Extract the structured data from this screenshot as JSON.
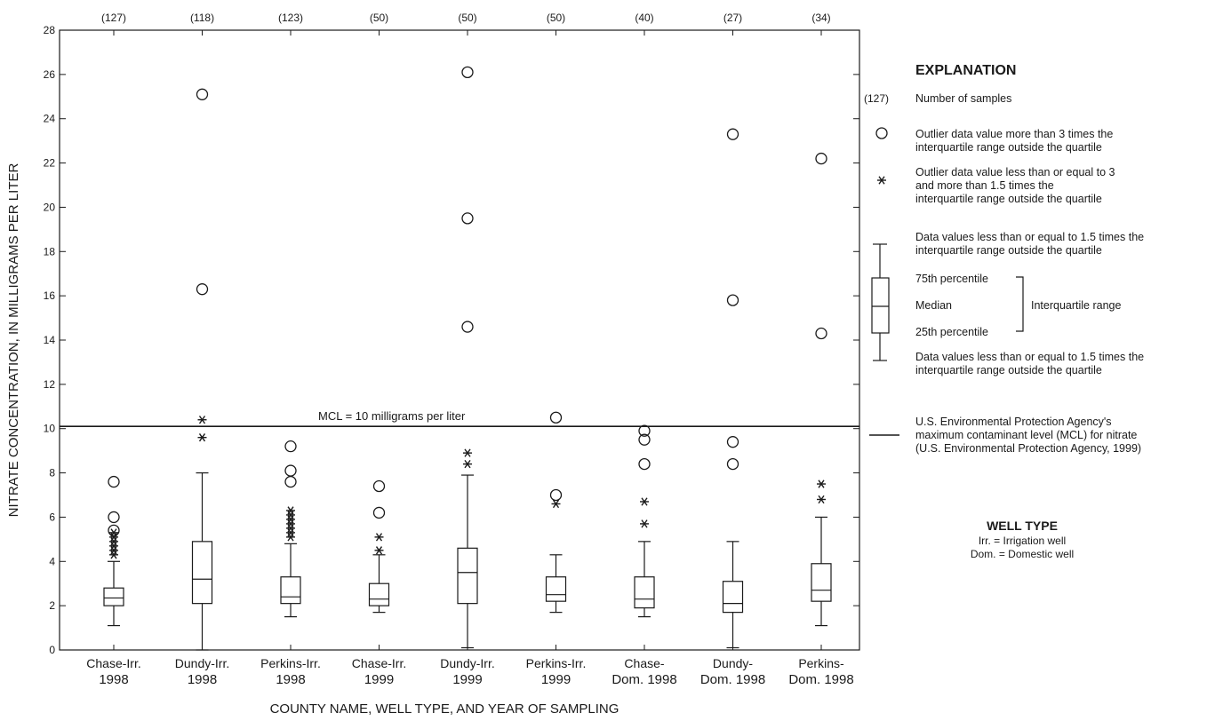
{
  "chart_data": {
    "type": "box",
    "xlabel": "COUNTY NAME, WELL TYPE, AND YEAR OF SAMPLING",
    "ylabel": "NITRATE CONCENTRATION, IN MILLIGRAMS PER LITER",
    "ylim": [
      0,
      28
    ],
    "yticks": [
      0,
      2,
      4,
      6,
      8,
      10,
      12,
      14,
      16,
      18,
      20,
      22,
      24,
      26,
      28
    ],
    "categories": [
      {
        "line1": "Chase-Irr.",
        "line2": "1998",
        "n": "(127)"
      },
      {
        "line1": "Dundy-Irr.",
        "line2": "1998",
        "n": "(118)"
      },
      {
        "line1": "Perkins-Irr.",
        "line2": "1998",
        "n": "(123)"
      },
      {
        "line1": "Chase-Irr.",
        "line2": "1999",
        "n": "(50)"
      },
      {
        "line1": "Dundy-Irr.",
        "line2": "1999",
        "n": "(50)"
      },
      {
        "line1": "Perkins-Irr.",
        "line2": "1999",
        "n": "(50)"
      },
      {
        "line1": "Chase-",
        "line2": "Dom. 1998",
        "n": "(40)"
      },
      {
        "line1": "Dundy-",
        "line2": "Dom. 1998",
        "n": "(27)"
      },
      {
        "line1": "Perkins-",
        "line2": "Dom. 1998",
        "n": "(34)"
      }
    ],
    "boxes": [
      {
        "whisker_low": 1.1,
        "q1": 2.0,
        "median": 2.35,
        "q3": 2.8,
        "whisker_high": 4.0,
        "star_outliers": [
          4.3,
          4.5,
          4.7,
          4.9,
          5.1,
          5.3
        ],
        "circle_outliers": [
          5.4,
          6.0,
          7.6
        ]
      },
      {
        "whisker_low": 0.0,
        "q1": 2.1,
        "median": 3.2,
        "q3": 4.9,
        "whisker_high": 8.0,
        "star_outliers": [
          9.6,
          10.4
        ],
        "circle_outliers": [
          16.3,
          25.1
        ]
      },
      {
        "whisker_low": 1.5,
        "q1": 2.1,
        "median": 2.4,
        "q3": 3.3,
        "whisker_high": 4.8,
        "star_outliers": [
          5.1,
          5.3,
          5.5,
          5.7,
          5.9,
          6.1,
          6.3
        ],
        "circle_outliers": [
          7.6,
          8.1,
          9.2
        ]
      },
      {
        "whisker_low": 1.7,
        "q1": 2.0,
        "median": 2.3,
        "q3": 3.0,
        "whisker_high": 4.3,
        "star_outliers": [
          4.5,
          5.1
        ],
        "circle_outliers": [
          6.2,
          7.4
        ]
      },
      {
        "whisker_low": 0.1,
        "q1": 2.1,
        "median": 3.5,
        "q3": 4.6,
        "whisker_high": 7.9,
        "star_outliers": [
          8.4,
          8.9
        ],
        "circle_outliers": [
          14.6,
          19.5,
          26.1
        ]
      },
      {
        "whisker_low": 1.7,
        "q1": 2.2,
        "median": 2.5,
        "q3": 3.3,
        "whisker_high": 4.3,
        "star_outliers": [
          6.6
        ],
        "circle_outliers": [
          7.0,
          10.5
        ]
      },
      {
        "whisker_low": 1.5,
        "q1": 1.9,
        "median": 2.3,
        "q3": 3.3,
        "whisker_high": 4.9,
        "star_outliers": [
          5.7,
          6.7
        ],
        "circle_outliers": [
          8.4,
          9.5,
          9.9
        ]
      },
      {
        "whisker_low": 0.1,
        "q1": 1.7,
        "median": 2.1,
        "q3": 3.1,
        "whisker_high": 4.9,
        "star_outliers": [],
        "circle_outliers": [
          8.4,
          9.4,
          15.8,
          23.3
        ]
      },
      {
        "whisker_low": 1.1,
        "q1": 2.2,
        "median": 2.7,
        "q3": 3.9,
        "whisker_high": 6.0,
        "star_outliers": [
          6.8,
          7.5
        ],
        "circle_outliers": [
          14.3,
          22.2
        ]
      }
    ],
    "reference_line": {
      "value": 10.1,
      "label": "MCL = 10 milligrams per liter"
    },
    "legend_position": "right"
  },
  "explanation": {
    "title": "EXPLANATION",
    "n_sample": "(127)",
    "n_text": "Number of samples",
    "circle_line1": "Outlier data value more than 3 times the",
    "circle_line2": "interquartile range outside the quartile",
    "star_line1": "Outlier data value less than or equal to 3",
    "star_line2": "and more than 1.5 times the",
    "star_line3": "interquartile range outside the quartile",
    "upper_line1": "Data values less than or equal to 1.5 times the",
    "upper_line2": "interquartile range outside the quartile",
    "p75": "75th percentile",
    "median": "Median",
    "p25": "25th percentile",
    "iqr": "Interquartile range",
    "lower_line1": "Data values less than or equal to 1.5 times the",
    "lower_line2": "interquartile range outside the quartile",
    "mcl_line1": "U.S. Environmental Protection Agency's",
    "mcl_line2": "maximum contaminant level (MCL) for nitrate",
    "mcl_line3": "(U.S. Environmental Protection Agency, 1999)"
  },
  "well_type": {
    "title": "WELL TYPE",
    "irr": "Irr. = Irrigation well",
    "dom": "Dom. = Domestic well"
  }
}
